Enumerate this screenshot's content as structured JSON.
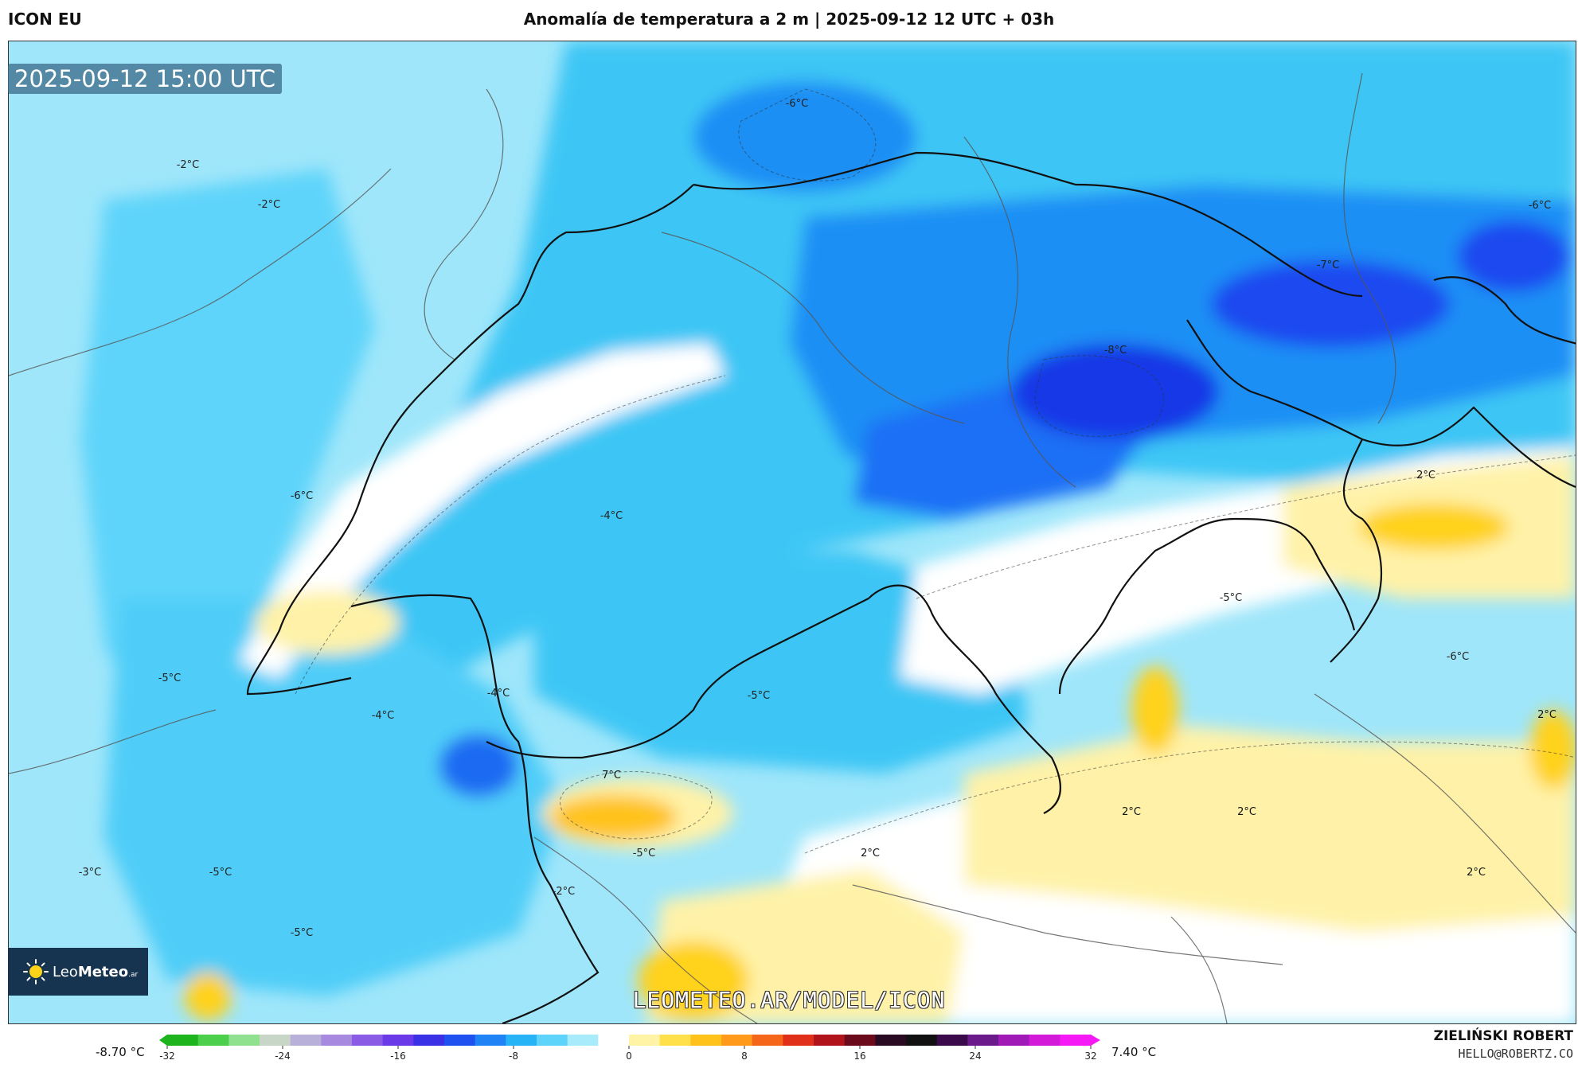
{
  "header": {
    "model": "ICON EU",
    "title": "Anomalía de temperatura a 2 m | 2025-09-12 12 UTC + 03h"
  },
  "map": {
    "timestamp": "2025-09-12 15:00 UTC",
    "watermark": "LEOMETEO.AR/MODEL/ICON",
    "labels": [
      "-6°C",
      "-2°C",
      "-2°C",
      "-6°C",
      "-7°C",
      "-8°C",
      "-6°C",
      "-4°C",
      "2°C",
      "-5°C",
      "-5°C",
      "-4°C",
      "-4°C",
      "-5°C",
      "-6°C",
      "2°C",
      "7°C",
      "2°C",
      "2°C",
      "-3°C",
      "-5°C",
      "-5°C",
      "-5°C",
      "-2°C",
      "2°C",
      "2°C"
    ]
  },
  "logo": {
    "name_light": "Leo",
    "name_bold": "Meteo",
    "suffix": ".ar"
  },
  "legend": {
    "min_label": "-8.70 °C",
    "max_label": "7.40 °C",
    "ticks": [
      "-32",
      "-24",
      "-16",
      "-8",
      "0",
      "8",
      "16",
      "24",
      "32"
    ],
    "colors": [
      "#1db41d",
      "#4cd04c",
      "#8fe08f",
      "#c8d6c8",
      "#b8b0d8",
      "#a78ae0",
      "#8a5ce6",
      "#6a3ae8",
      "#3a30e6",
      "#1f50f0",
      "#1f82f5",
      "#27b4f7",
      "#5fd4fa",
      "#a8ecfc",
      "#ffffff",
      "#fff3a6",
      "#ffe04a",
      "#ffc21a",
      "#ff9a1a",
      "#f5661a",
      "#e0301a",
      "#b0141a",
      "#6a0a1a",
      "#2a0a22",
      "#111111",
      "#3a0a4a",
      "#6a1a8a",
      "#a01ab8",
      "#d21ad8",
      "#f51af5"
    ]
  },
  "author": {
    "name": "ZIELIŃSKI ROBERT",
    "contact": "HELLO@ROBERTZ.CO"
  },
  "palette": {
    "strong_cold": "#1438e6",
    "cold": "#2ec8f5",
    "cool": "#9fe6fa",
    "neutral": "#ffffff",
    "warm": "#fff2a8",
    "hot": "#ffd21a"
  }
}
